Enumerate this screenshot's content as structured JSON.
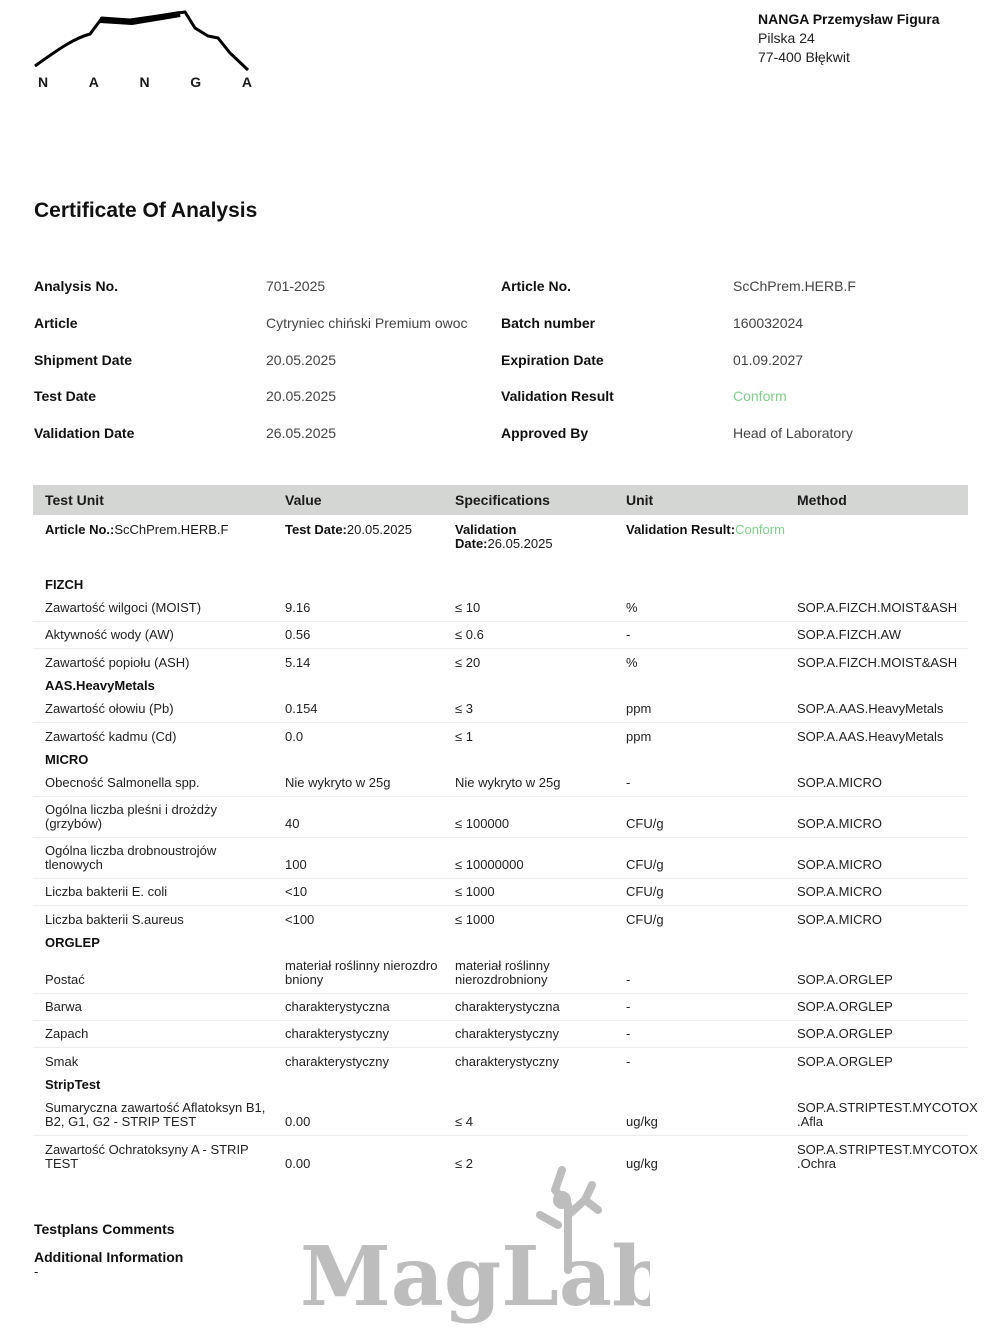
{
  "logo": {
    "text": [
      "N",
      "A",
      "N",
      "G",
      "A"
    ]
  },
  "company": {
    "name": "NANGA Przemysław Figura",
    "street": "Pilska 24",
    "city": "77-400 Błękwit"
  },
  "title": "Certificate Of Analysis",
  "info": [
    {
      "l1": "Analysis No.",
      "v1": "701-2025",
      "l2": "Article No.",
      "v2": "ScChPrem.HERB.F"
    },
    {
      "l1": "Article",
      "v1": "Cytryniec chiński Premium owoc",
      "l2": "Batch number",
      "v2": "160032024"
    },
    {
      "l1": "Shipment Date",
      "v1": "20.05.2025",
      "l2": "Expiration Date",
      "v2": "01.09.2027"
    },
    {
      "l1": "Test Date",
      "v1": "20.05.2025",
      "l2": "Validation Result",
      "v2": "Conform"
    },
    {
      "l1": "Validation Date",
      "v1": "26.05.2025",
      "l2": "Approved By",
      "v2": "Head of Laboratory"
    }
  ],
  "colors": {
    "conform": "#7fd08a",
    "header_bg": "#d4d6d3"
  },
  "table": {
    "headers": [
      "Test Unit",
      "Value",
      "Specifications",
      "Unit",
      "Method"
    ],
    "summary": {
      "article_label": "Article No.:",
      "article": "ScChPrem.HERB.F",
      "test_label": "Test Date:",
      "test": "20.05.2025",
      "val_label": "Validation Date:",
      "val": "26.05.2025",
      "res_label": "Validation Result:",
      "res": "Conform"
    },
    "groups": [
      {
        "name": "FIZCH",
        "rows": [
          [
            "Zawartość wilgoci (MOIST)",
            "9.16",
            "≤ 10",
            "%",
            "SOP.A.FIZCH.MOIST&ASH"
          ],
          [
            "Aktywność wody (AW)",
            "0.56",
            "≤ 0.6",
            "-",
            "SOP.A.FIZCH.AW"
          ],
          [
            "Zawartość popiołu (ASH)",
            "5.14",
            "≤ 20",
            "%",
            "SOP.A.FIZCH.MOIST&ASH"
          ]
        ]
      },
      {
        "name": "AAS.HeavyMetals",
        "rows": [
          [
            "Zawartość ołowiu (Pb)",
            "0.154",
            "≤ 3",
            "ppm",
            "SOP.A.AAS.HeavyMetals"
          ],
          [
            "Zawartość kadmu (Cd)",
            "0.0",
            "≤ 1",
            "ppm",
            "SOP.A.AAS.HeavyMetals"
          ]
        ]
      },
      {
        "name": "MICRO",
        "rows": [
          [
            "Obecność Salmonella spp.",
            "Nie wykryto w 25g",
            "Nie wykryto w 25g",
            "-",
            "SOP.A.MICRO"
          ],
          [
            "Ogólna liczba pleśni i drożdży\n(grzybów)",
            "40",
            "≤ 100000",
            "CFU/g",
            "SOP.A.MICRO"
          ],
          [
            "Ogólna liczba drobnoustrojów\ntlenowych",
            "100",
            "≤ 10000000",
            "CFU/g",
            "SOP.A.MICRO"
          ],
          [
            "Liczba bakterii E. coli",
            "<10",
            "≤ 1000",
            "CFU/g",
            "SOP.A.MICRO"
          ],
          [
            "Liczba bakterii S.aureus",
            "<100",
            "≤ 1000",
            "CFU/g",
            "SOP.A.MICRO"
          ]
        ]
      },
      {
        "name": "ORGLEP",
        "rows": [
          [
            "Postać",
            "materiał roślinny nierozdro\nbniony",
            "materiał roślinny\nnierozdrobniony",
            "-",
            "SOP.A.ORGLEP"
          ],
          [
            "Barwa",
            "charakterystyczna",
            "charakterystyczna",
            "-",
            "SOP.A.ORGLEP"
          ],
          [
            "Zapach",
            "charakterystyczny",
            "charakterystyczny",
            "-",
            "SOP.A.ORGLEP"
          ],
          [
            "Smak",
            "charakterystyczny",
            "charakterystyczny",
            "-",
            "SOP.A.ORGLEP"
          ]
        ]
      },
      {
        "name": "StripTest",
        "rows": [
          [
            "Sumaryczna zawartość Aflatoksyn B1,\nB2, G1, G2 - STRIP TEST",
            "0.00",
            "≤ 4",
            "ug/kg",
            "SOP.A.STRIPTEST.MYCOTOX\n.Afla"
          ],
          [
            "Zawartość Ochratoksyny A - STRIP\nTEST",
            "0.00",
            "≤ 2",
            "ug/kg",
            "SOP.A.STRIPTEST.MYCOTOX\n.Ochra"
          ]
        ]
      }
    ]
  },
  "footer": {
    "comments_label": "Testplans Comments",
    "additional_label": "Additional Information",
    "additional_value": "-"
  },
  "watermark": {
    "text": "MagLab"
  }
}
